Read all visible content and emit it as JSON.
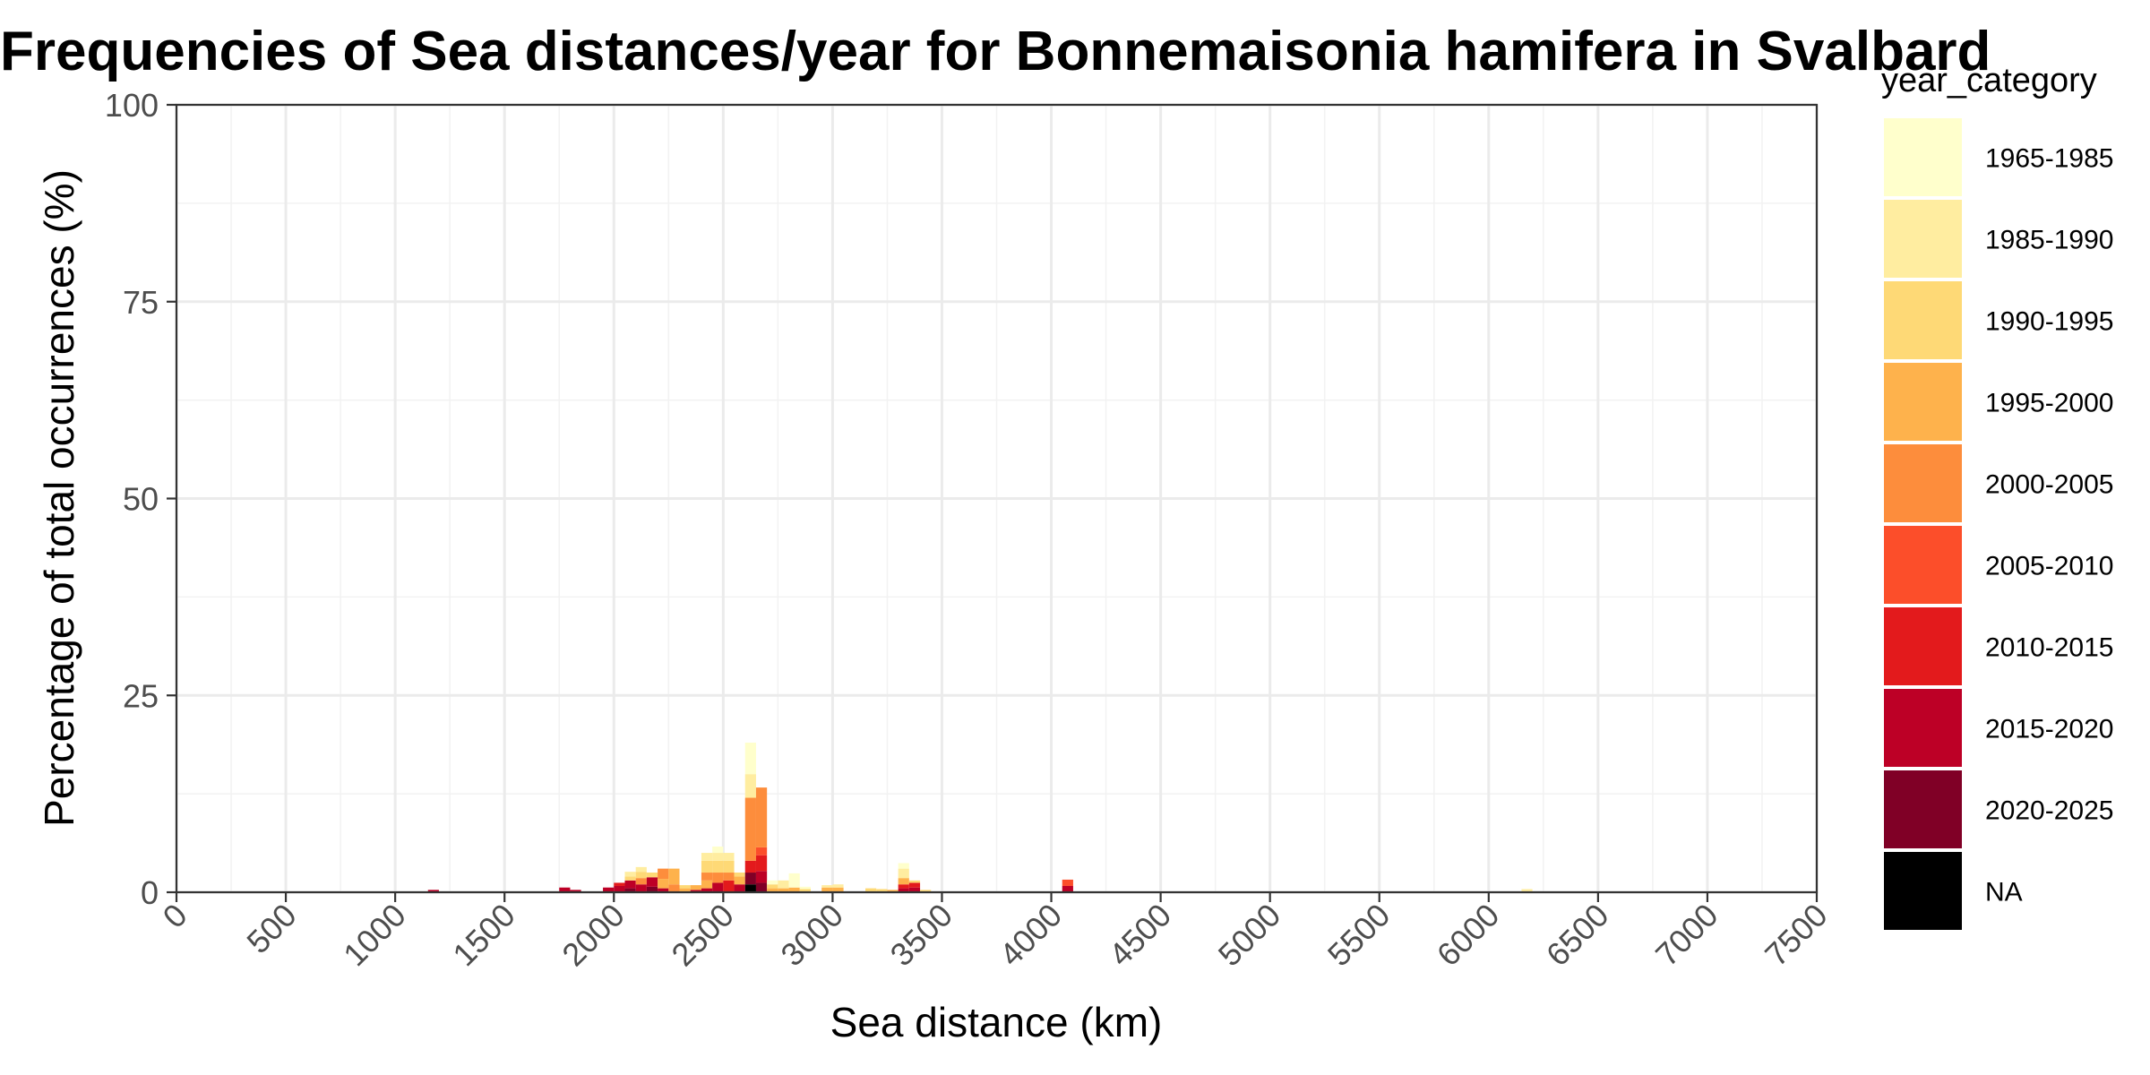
{
  "chart_data": {
    "type": "bar",
    "stacked": true,
    "title": "Frequencies of Sea distances/year for Bonnemaisonia hamifera in Svalbard",
    "xlabel": "Sea distance (km)",
    "ylabel": "Percentage of total occurrences (%)",
    "xlim": [
      0,
      7500
    ],
    "ylim": [
      0,
      100
    ],
    "x_ticks": [
      0,
      500,
      1000,
      1500,
      2000,
      2500,
      3000,
      3500,
      4000,
      4500,
      5000,
      5500,
      6000,
      6500,
      7000,
      7500
    ],
    "y_ticks": [
      0,
      25,
      50,
      75,
      100
    ],
    "bin_width": 50,
    "grid": true,
    "legend": {
      "title": "year_category",
      "placement": "right",
      "entries": [
        {
          "name": "1965-1985",
          "color": "#FFFFCC"
        },
        {
          "name": "1985-1990",
          "color": "#FFEDA0"
        },
        {
          "name": "1990-1995",
          "color": "#FED976"
        },
        {
          "name": "1995-2000",
          "color": "#FEB24C"
        },
        {
          "name": "2000-2005",
          "color": "#FD8D3C"
        },
        {
          "name": "2005-2010",
          "color": "#FC4E2A"
        },
        {
          "name": "2010-2015",
          "color": "#E31A1C"
        },
        {
          "name": "2015-2020",
          "color": "#BD0026"
        },
        {
          "name": "2020-2025",
          "color": "#800026"
        },
        {
          "name": "NA",
          "color": "#000000"
        }
      ]
    },
    "bins": [
      {
        "x": 1175,
        "segments": [
          {
            "cat": "2015-2020",
            "v": 0.3
          }
        ]
      },
      {
        "x": 1775,
        "segments": [
          {
            "cat": "2015-2020",
            "v": 0.6
          }
        ]
      },
      {
        "x": 1825,
        "segments": [
          {
            "cat": "2015-2020",
            "v": 0.3
          }
        ]
      },
      {
        "x": 1975,
        "segments": [
          {
            "cat": "2015-2020",
            "v": 0.6
          }
        ]
      },
      {
        "x": 2025,
        "segments": [
          {
            "cat": "2015-2020",
            "v": 0.8
          },
          {
            "cat": "2010-2015",
            "v": 0.4
          }
        ]
      },
      {
        "x": 2075,
        "segments": [
          {
            "cat": "2020-2025",
            "v": 0.5
          },
          {
            "cat": "2015-2020",
            "v": 1.0
          },
          {
            "cat": "1990-1995",
            "v": 0.5
          },
          {
            "cat": "1985-1990",
            "v": 0.6
          }
        ]
      },
      {
        "x": 2125,
        "segments": [
          {
            "cat": "2015-2020",
            "v": 1.0
          },
          {
            "cat": "2000-2005",
            "v": 0.8
          },
          {
            "cat": "1990-1995",
            "v": 0.8
          },
          {
            "cat": "1985-1990",
            "v": 0.6
          }
        ]
      },
      {
        "x": 2175,
        "segments": [
          {
            "cat": "2020-2025",
            "v": 0.7
          },
          {
            "cat": "2015-2020",
            "v": 1.2
          },
          {
            "cat": "1990-1995",
            "v": 0.6
          }
        ]
      },
      {
        "x": 2225,
        "segments": [
          {
            "cat": "2015-2020",
            "v": 0.5
          },
          {
            "cat": "1995-2000",
            "v": 1.2
          },
          {
            "cat": "2000-2005",
            "v": 1.3
          }
        ]
      },
      {
        "x": 2275,
        "segments": [
          {
            "cat": "2000-2005",
            "v": 1.0
          },
          {
            "cat": "1995-2000",
            "v": 2.0
          }
        ]
      },
      {
        "x": 2325,
        "segments": [
          {
            "cat": "1995-2000",
            "v": 0.5
          },
          {
            "cat": "1990-1995",
            "v": 0.4
          }
        ]
      },
      {
        "x": 2375,
        "segments": [
          {
            "cat": "2015-2020",
            "v": 0.3
          },
          {
            "cat": "1995-2000",
            "v": 0.6
          }
        ]
      },
      {
        "x": 2425,
        "segments": [
          {
            "cat": "2015-2020",
            "v": 0.5
          },
          {
            "cat": "1995-2000",
            "v": 1.0
          },
          {
            "cat": "2000-2005",
            "v": 1.0
          },
          {
            "cat": "1990-1995",
            "v": 1.5
          },
          {
            "cat": "1985-1990",
            "v": 1.0
          }
        ]
      },
      {
        "x": 2475,
        "segments": [
          {
            "cat": "2015-2020",
            "v": 1.2
          },
          {
            "cat": "2000-2005",
            "v": 1.3
          },
          {
            "cat": "1990-1995",
            "v": 1.5
          },
          {
            "cat": "1985-1990",
            "v": 1.0
          },
          {
            "cat": "1965-1985",
            "v": 0.8
          }
        ]
      },
      {
        "x": 2525,
        "segments": [
          {
            "cat": "2010-2015",
            "v": 1.5
          },
          {
            "cat": "2000-2005",
            "v": 1.0
          },
          {
            "cat": "1990-1995",
            "v": 1.5
          },
          {
            "cat": "1985-1990",
            "v": 1.0
          }
        ]
      },
      {
        "x": 2575,
        "segments": [
          {
            "cat": "2015-2020",
            "v": 1.0
          },
          {
            "cat": "1995-2000",
            "v": 1.0
          },
          {
            "cat": "1990-1995",
            "v": 0.5
          }
        ]
      },
      {
        "x": 2625,
        "segments": [
          {
            "cat": "NA",
            "v": 1.0
          },
          {
            "cat": "2020-2025",
            "v": 1.5
          },
          {
            "cat": "2010-2015",
            "v": 1.5
          },
          {
            "cat": "2000-2005",
            "v": 8.0
          },
          {
            "cat": "1985-1990",
            "v": 3.0
          },
          {
            "cat": "1965-1985",
            "v": 4.0
          }
        ]
      },
      {
        "x": 2675,
        "segments": [
          {
            "cat": "2020-2025",
            "v": 1.2
          },
          {
            "cat": "2015-2020",
            "v": 1.5
          },
          {
            "cat": "2010-2015",
            "v": 2.0
          },
          {
            "cat": "2005-2010",
            "v": 1.0
          },
          {
            "cat": "2000-2005",
            "v": 7.6
          }
        ]
      },
      {
        "x": 2725,
        "segments": [
          {
            "cat": "1995-2000",
            "v": 0.5
          },
          {
            "cat": "1990-1995",
            "v": 0.5
          },
          {
            "cat": "1965-1985",
            "v": 0.5
          }
        ]
      },
      {
        "x": 2775,
        "segments": [
          {
            "cat": "1995-2000",
            "v": 0.5
          },
          {
            "cat": "1985-1990",
            "v": 1.0
          }
        ]
      },
      {
        "x": 2825,
        "segments": [
          {
            "cat": "1995-2000",
            "v": 0.6
          },
          {
            "cat": "1965-1985",
            "v": 1.8
          }
        ]
      },
      {
        "x": 2875,
        "segments": [
          {
            "cat": "1990-1995",
            "v": 0.4
          },
          {
            "cat": "1965-1985",
            "v": 0.3
          }
        ]
      },
      {
        "x": 2975,
        "segments": [
          {
            "cat": "1995-2000",
            "v": 0.6
          },
          {
            "cat": "1985-1990",
            "v": 0.3
          }
        ]
      },
      {
        "x": 3025,
        "segments": [
          {
            "cat": "1995-2000",
            "v": 0.6
          },
          {
            "cat": "1985-1990",
            "v": 0.4
          }
        ]
      },
      {
        "x": 3175,
        "segments": [
          {
            "cat": "1990-1995",
            "v": 0.5
          }
        ]
      },
      {
        "x": 3225,
        "segments": [
          {
            "cat": "1990-1995",
            "v": 0.4
          }
        ]
      },
      {
        "x": 3275,
        "segments": [
          {
            "cat": "1995-2000",
            "v": 0.3
          }
        ]
      },
      {
        "x": 3325,
        "segments": [
          {
            "cat": "2015-2020",
            "v": 0.5
          },
          {
            "cat": "2010-2015",
            "v": 0.5
          },
          {
            "cat": "1995-2000",
            "v": 0.8
          },
          {
            "cat": "1985-1990",
            "v": 1.2
          },
          {
            "cat": "1965-1985",
            "v": 0.7
          }
        ]
      },
      {
        "x": 3375,
        "segments": [
          {
            "cat": "2015-2020",
            "v": 0.6
          },
          {
            "cat": "2010-2015",
            "v": 0.6
          },
          {
            "cat": "1990-1995",
            "v": 0.3
          }
        ]
      },
      {
        "x": 3425,
        "segments": [
          {
            "cat": "1990-1995",
            "v": 0.3
          }
        ]
      },
      {
        "x": 4075,
        "segments": [
          {
            "cat": "2015-2020",
            "v": 0.8
          },
          {
            "cat": "2005-2010",
            "v": 0.8
          }
        ]
      },
      {
        "x": 6175,
        "segments": [
          {
            "cat": "1985-1990",
            "v": 0.4
          }
        ]
      }
    ]
  }
}
